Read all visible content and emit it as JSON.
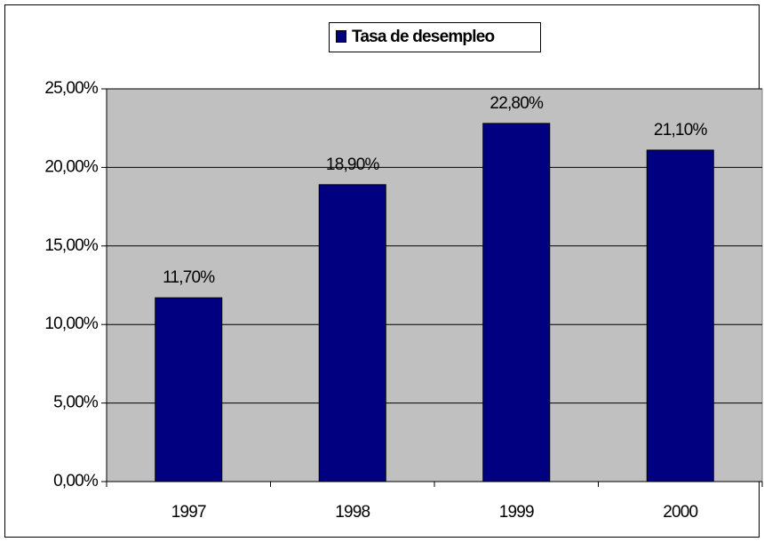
{
  "chart_data": {
    "type": "bar",
    "categories": [
      "1997",
      "1998",
      "1999",
      "2000"
    ],
    "series": [
      {
        "name": "Tasa de desempleo",
        "color": "#000080",
        "values": [
          11.7,
          18.9,
          22.8,
          21.1
        ],
        "value_labels": [
          "11,70%",
          "18,90%",
          "22,80%",
          "21,10%"
        ]
      }
    ],
    "ylim": [
      0,
      25
    ],
    "yticks": [
      {
        "value": 0,
        "label": "0,00%"
      },
      {
        "value": 5,
        "label": "5,00%"
      },
      {
        "value": 10,
        "label": "10,00%"
      },
      {
        "value": 15,
        "label": "15,00%"
      },
      {
        "value": 20,
        "label": "20,00%"
      },
      {
        "value": 25,
        "label": "25,00%"
      }
    ],
    "grid": true,
    "plot_background": "#c0c0c0",
    "legend": "top"
  }
}
